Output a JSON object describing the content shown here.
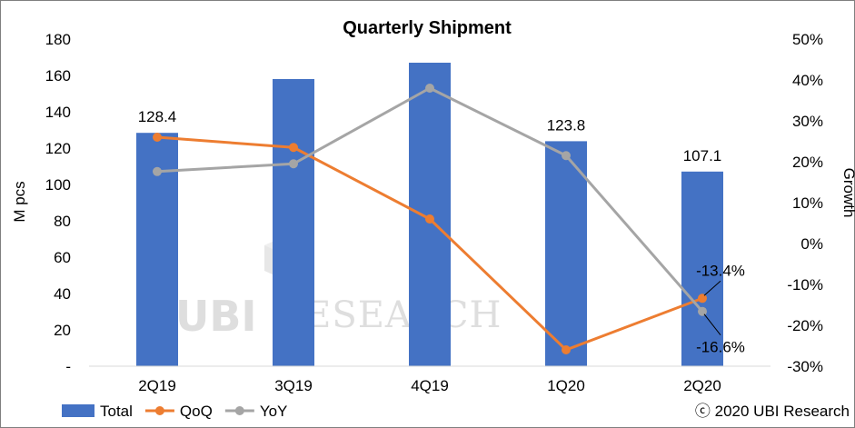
{
  "chart_data": {
    "type": "bar",
    "title": "Quarterly Shipment",
    "categories": [
      "2Q19",
      "3Q19",
      "4Q19",
      "1Q20",
      "2Q20"
    ],
    "ylabel": "M pcs",
    "y2label": "Growth",
    "ylim": [
      0,
      180
    ],
    "y2lim": [
      -30,
      50
    ],
    "y_ticks": [
      "-",
      "20",
      "40",
      "60",
      "80",
      "100",
      "120",
      "140",
      "160",
      "180"
    ],
    "y2_ticks": [
      "-30%",
      "-20%",
      "-10%",
      "0%",
      "10%",
      "20%",
      "30%",
      "40%",
      "50%"
    ],
    "series": [
      {
        "name": "Total",
        "kind": "bar",
        "color": "#4472c4",
        "values": [
          128.4,
          158,
          167,
          123.8,
          107.1
        ]
      },
      {
        "name": "QoQ",
        "kind": "line",
        "axis": "right",
        "color": "#ed7d31",
        "values": [
          26,
          23.5,
          6,
          -26,
          -13.4
        ]
      },
      {
        "name": "YoY",
        "kind": "line",
        "axis": "right",
        "color": "#a5a5a5",
        "values": [
          17.6,
          19.5,
          38,
          21.5,
          -16.6
        ]
      }
    ],
    "data_labels": [
      {
        "series": "Total",
        "index": 0,
        "text": "128.4"
      },
      {
        "series": "Total",
        "index": 3,
        "text": "123.8"
      },
      {
        "series": "Total",
        "index": 4,
        "text": "107.1"
      },
      {
        "series": "QoQ",
        "index": 4,
        "text": "-13.4%"
      },
      {
        "series": "YoY",
        "index": 4,
        "text": "-16.6%"
      }
    ],
    "legend": {
      "placement": "bottom-left",
      "entries": [
        "Total",
        "QoQ",
        "YoY"
      ]
    },
    "grid": false
  },
  "watermark": {
    "mark": "UBI",
    "text": "RESEARCH"
  },
  "copyright": "ⓒ 2020 UBI Research"
}
